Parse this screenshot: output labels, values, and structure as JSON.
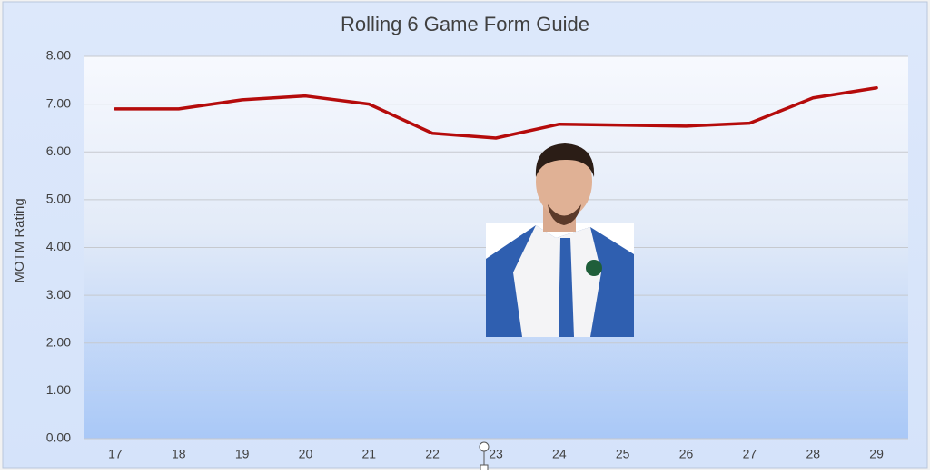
{
  "chart_data": {
    "type": "line",
    "title": "Rolling 6 Game Form Guide",
    "y_label": "MOTM Rating",
    "categories": [
      "17",
      "18",
      "19",
      "20",
      "21",
      "22",
      "23",
      "24",
      "25",
      "26",
      "27",
      "28",
      "29"
    ],
    "series": [
      {
        "name": "MOTM Rating",
        "color": "#b50b0b",
        "values": [
          6.9,
          6.9,
          7.09,
          7.17,
          7.0,
          6.39,
          6.29,
          6.58,
          6.56,
          6.54,
          6.6,
          7.13,
          7.34
        ]
      }
    ],
    "ylim": [
      0,
      8
    ],
    "yticks": [
      {
        "value": 0,
        "label": "0.00"
      },
      {
        "value": 1,
        "label": "1.00"
      },
      {
        "value": 2,
        "label": "2.00"
      },
      {
        "value": 3,
        "label": "3.00"
      },
      {
        "value": 4,
        "label": "4.00"
      },
      {
        "value": 5,
        "label": "5.00"
      },
      {
        "value": 6,
        "label": "6.00"
      },
      {
        "value": 7,
        "label": "7.00"
      },
      {
        "value": 8,
        "label": "8.00"
      }
    ],
    "grid": true
  }
}
